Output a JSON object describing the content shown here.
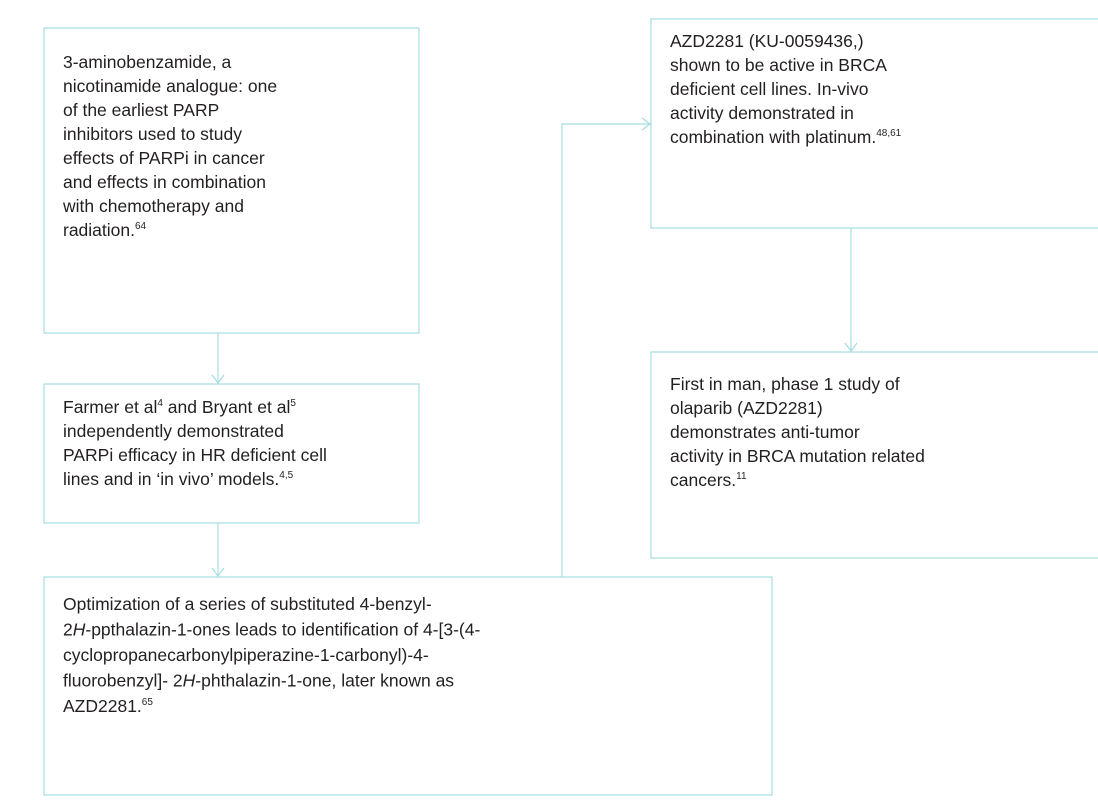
{
  "nodes": [
    {
      "lines": [
        [
          {
            "text": "3-aminobenzamide, a"
          }
        ],
        [
          {
            "text": "nicotinamide analogue: one"
          }
        ],
        [
          {
            "text": "of the earliest PARP"
          }
        ],
        [
          {
            "text": "inhibitors used to study"
          }
        ],
        [
          {
            "text": "effects of PARPi in cancer"
          }
        ],
        [
          {
            "text": "and effects in combination"
          }
        ],
        [
          {
            "text": "with chemotherapy and"
          }
        ],
        [
          {
            "text": "radiation."
          },
          {
            "text": "64",
            "sup": true
          }
        ]
      ]
    },
    {
      "lines": [
        [
          {
            "text": "Farmer et al"
          },
          {
            "text": "4",
            "sup": true
          },
          {
            "text": " and Bryant et al"
          },
          {
            "text": "5",
            "sup": true
          }
        ],
        [
          {
            "text": "independently demonstrated"
          }
        ],
        [
          {
            "text": "PARPi efficacy in HR deficient cell"
          }
        ],
        [
          {
            "text": "lines and in ‘in vivo’ models."
          },
          {
            "text": "4,5",
            "sup": true
          }
        ]
      ]
    },
    {
      "lines": [
        [
          {
            "text": "Optimization of a series of substituted 4-benzyl-"
          }
        ],
        [
          {
            "text": "2"
          },
          {
            "text": "H",
            "italic": true
          },
          {
            "text": "-ppthalazin-1-ones leads to identification of 4-[3-(4-"
          }
        ],
        [
          {
            "text": "cyclopropanecarbonylpiperazine-1-carbonyl)-4-"
          }
        ],
        [
          {
            "text": "fluorobenzyl]- 2"
          },
          {
            "text": "H",
            "italic": true
          },
          {
            "text": "-phthalazin-1-one, later known as"
          }
        ],
        [
          {
            "text": "AZD2281."
          },
          {
            "text": "65",
            "sup": true
          }
        ]
      ]
    },
    {
      "lines": [
        [
          {
            "text": "AZD2281 (KU-0059436,)"
          }
        ],
        [
          {
            "text": "shown to be active in BRCA"
          }
        ],
        [
          {
            "text": "deficient cell lines. In-vivo"
          }
        ],
        [
          {
            "text": "activity demonstrated in"
          }
        ],
        [
          {
            "text": "combination with platinum."
          },
          {
            "text": "48,61",
            "sup": true
          }
        ]
      ]
    },
    {
      "lines": [
        [
          {
            "text": "First in man, phase 1 study of"
          }
        ],
        [
          {
            "text": "olaparib (AZD2281)"
          }
        ],
        [
          {
            "text": "demonstrates anti-tumor"
          }
        ],
        [
          {
            "text": "activity in BRCA mutation related"
          }
        ],
        [
          {
            "text": "cancers."
          },
          {
            "text": "11",
            "sup": true
          }
        ]
      ]
    }
  ]
}
